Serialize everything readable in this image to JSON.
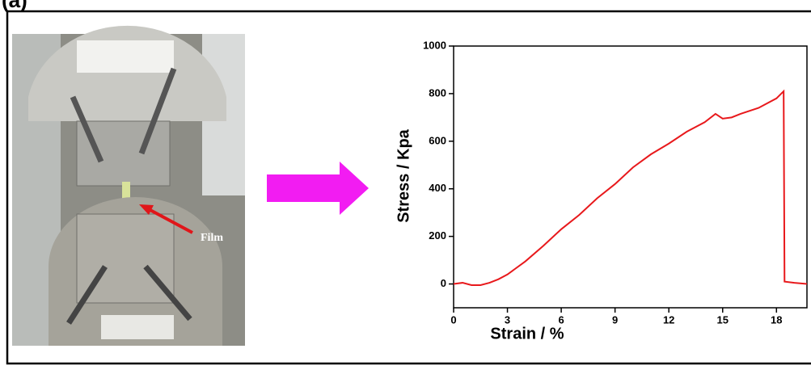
{
  "panel_label": "(a)",
  "photo": {
    "annotation": "Film"
  },
  "chart_data": {
    "type": "line",
    "x_label": "Strain / %",
    "y_label": "Stress / Kpa",
    "x": [
      0,
      0.5,
      1,
      1.5,
      2,
      2.5,
      3,
      4,
      5,
      6,
      7,
      8,
      9,
      10,
      11,
      12,
      13,
      14,
      14.6,
      15,
      15.5,
      16,
      17,
      18,
      18.4,
      18.45,
      19,
      19.7
    ],
    "series": [
      {
        "name": "Film",
        "color": "#e8191c",
        "values": [
          0,
          5,
          -5,
          -5,
          5,
          20,
          40,
          95,
          160,
          230,
          290,
          360,
          420,
          490,
          545,
          590,
          640,
          680,
          715,
          695,
          700,
          715,
          740,
          780,
          810,
          10,
          5,
          0
        ]
      }
    ],
    "xlim": [
      0,
      19.7
    ],
    "ylim": [
      -100,
      1000
    ],
    "xticks": [
      0,
      3,
      6,
      9,
      12,
      15,
      18
    ],
    "yticks": [
      0,
      200,
      400,
      600,
      800,
      1000
    ],
    "grid": false
  }
}
